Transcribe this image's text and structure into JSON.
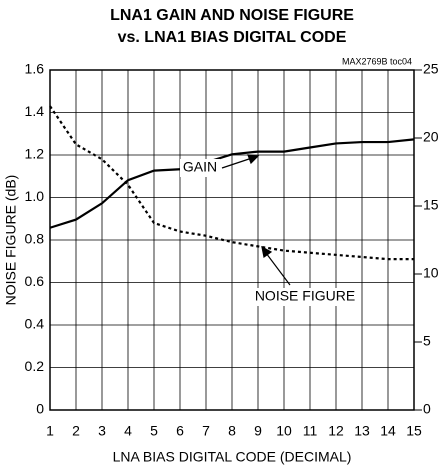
{
  "chart_data": {
    "type": "line",
    "title": "LNA1 GAIN AND NOISE FIGURE",
    "subtitle": "vs. LNA1 BIAS DIGITAL CODE",
    "note": "MAX2769B toc04",
    "x_label": "LNA BIAS DIGITAL CODE (DECIMAL)",
    "y_label": "NOISE FIGURE (dB)",
    "x": [
      1,
      2,
      3,
      4,
      5,
      6,
      7,
      8,
      9,
      10,
      11,
      12,
      13,
      14,
      15
    ],
    "xlim": [
      1,
      15
    ],
    "xticks": [
      1,
      2,
      3,
      4,
      5,
      6,
      7,
      8,
      9,
      10,
      11,
      12,
      13,
      14,
      15
    ],
    "ylim": [
      0,
      1.6
    ],
    "yticks": [
      0,
      0.2,
      0.4,
      0.6,
      0.8,
      {
        "value": 1,
        "label": "1.0"
      },
      1.2,
      1.4,
      1.6
    ],
    "y2lim": [
      0,
      25
    ],
    "y2ticks": [
      0,
      5,
      10,
      15,
      20,
      25
    ],
    "grid": true,
    "series": [
      {
        "name": "GAIN",
        "color": "#000000",
        "axis": "y2",
        "dash": false,
        "values": [
          13.4,
          14.0,
          15.2,
          16.9,
          17.6,
          17.7,
          18.2,
          18.8,
          19.0,
          19.0,
          19.3,
          19.6,
          19.7,
          19.7,
          19.9
        ]
      },
      {
        "name": "NOISE FIGURE",
        "color": "#000000",
        "axis": "y",
        "dash": true,
        "values": [
          1.43,
          1.25,
          1.18,
          1.06,
          0.88,
          0.84,
          0.82,
          0.79,
          0.77,
          0.75,
          0.74,
          0.73,
          0.72,
          0.71,
          0.71
        ]
      }
    ]
  }
}
